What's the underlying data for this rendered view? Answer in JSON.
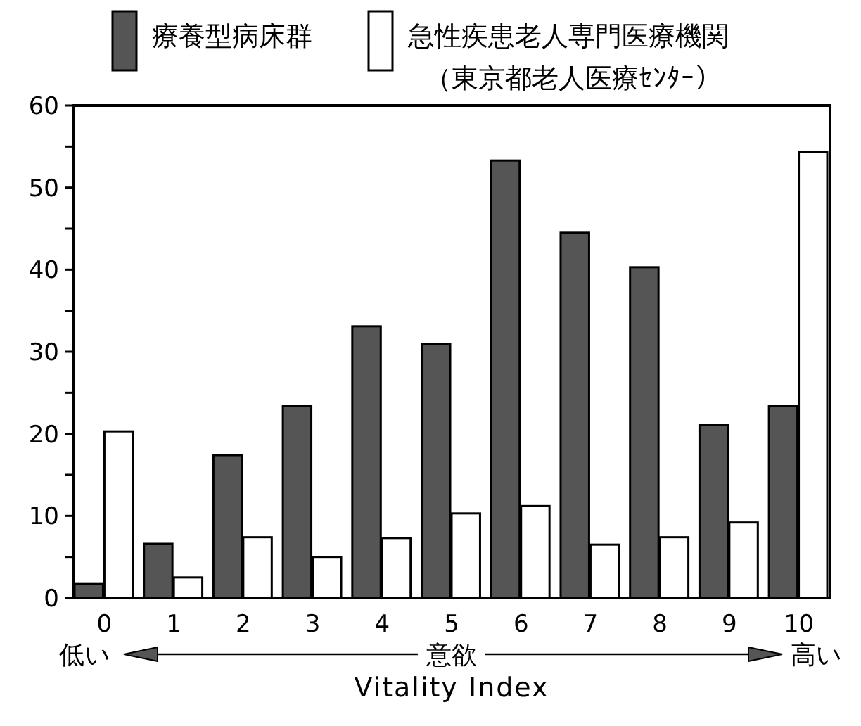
{
  "chart_data": {
    "type": "bar",
    "categories": [
      "0",
      "1",
      "2",
      "3",
      "4",
      "5",
      "6",
      "7",
      "8",
      "9",
      "10"
    ],
    "series": [
      {
        "name": "療養型病床群",
        "color": "#555555",
        "values": [
          1.7,
          6.6,
          17.4,
          23.4,
          33.1,
          30.9,
          53.3,
          44.5,
          40.3,
          21.1,
          23.4
        ]
      },
      {
        "name": "急性疾患老人専門医療機関（東京都老人医療ｾﾝﾀｰ）",
        "color": "#ffffff",
        "values": [
          20.3,
          2.5,
          7.4,
          5.0,
          7.3,
          10.3,
          11.2,
          6.5,
          7.4,
          9.2,
          54.3
        ]
      }
    ],
    "ylim": [
      0,
      60
    ],
    "yticks": [
      0,
      {
        "value": 5,
        "label": null
      },
      10,
      {
        "value": 15,
        "label": null
      },
      20,
      {
        "value": 25,
        "label": null
      },
      30,
      {
        "value": 35,
        "label": null
      },
      40,
      {
        "value": 45,
        "label": null
      },
      50,
      {
        "value": 55,
        "label": null
      },
      60
    ],
    "xlabel": "Vitality Index",
    "annotations": [
      "低い",
      "意欲",
      "高い"
    ],
    "legend": "top",
    "grid": false
  }
}
